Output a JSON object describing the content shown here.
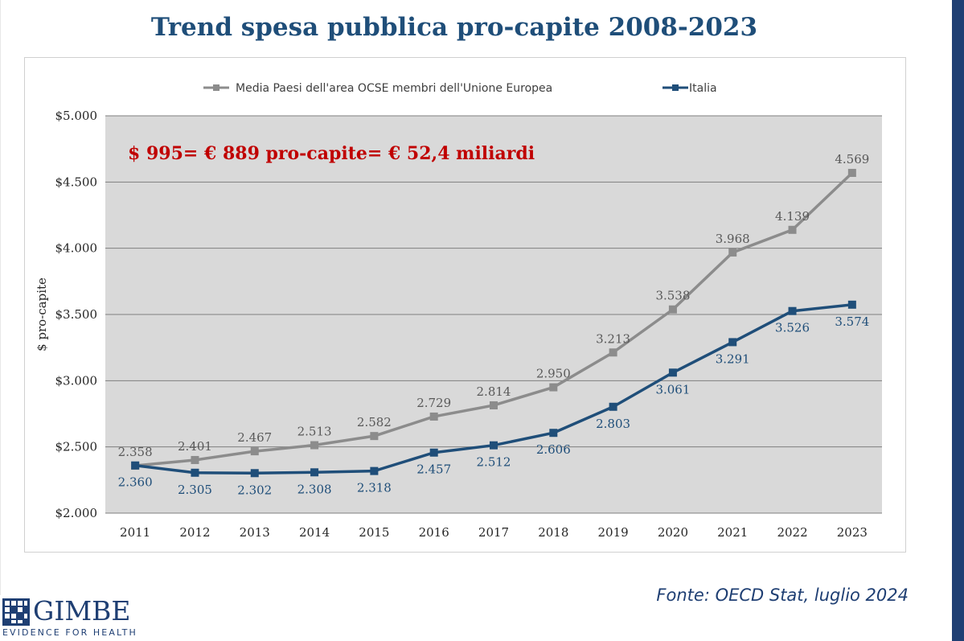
{
  "title": "Trend spesa pubblica pro-capite 2008-2023",
  "annotation": "$ 995= € 889 pro-capite= € 52,4 miliardi",
  "source": "Fonte: OECD Stat, luglio 2024",
  "logo": {
    "word": "GIMBE",
    "tagline": "EVIDENCE FOR HEALTH"
  },
  "colors": {
    "title": "#1f4e79",
    "gray_series": "#8c8c8c",
    "blue_series": "#1f4e79",
    "annotation": "#c00000",
    "plot_bg": "#d9d9d9"
  },
  "chart_data": {
    "type": "line",
    "title": "Trend spesa pubblica pro-capite 2008-2023",
    "ylabel": "$ pro-capite",
    "xlabel": "",
    "ylim": [
      2000,
      5000
    ],
    "yticks": [
      2000,
      2500,
      3000,
      3500,
      4000,
      4500,
      5000
    ],
    "ytick_labels": [
      "$2.000",
      "$2.500",
      "$3.000",
      "$3.500",
      "$4.000",
      "$4.500",
      "$5.000"
    ],
    "legend_position": "top",
    "categories": [
      "2011",
      "2012",
      "2013",
      "2014",
      "2015",
      "2016",
      "2017",
      "2018",
      "2019",
      "2020",
      "2021",
      "2022",
      "2023"
    ],
    "series": [
      {
        "name": "Media Paesi dell'area OCSE membri dell'Unione Europea",
        "color": "#8c8c8c",
        "values": [
          2358,
          2401,
          2467,
          2513,
          2582,
          2729,
          2814,
          2950,
          3213,
          3538,
          3968,
          4139,
          4569
        ],
        "labels": [
          "2.358",
          "2.401",
          "2.467",
          "2.513",
          "2.582",
          "2.729",
          "2.814",
          "2.950",
          "3.213",
          "3.538",
          "3.968",
          "4.139",
          "4.569"
        ],
        "label_position": "above"
      },
      {
        "name": "Italia",
        "color": "#1f4e79",
        "values": [
          2360,
          2305,
          2302,
          2308,
          2318,
          2457,
          2512,
          2606,
          2803,
          3061,
          3291,
          3526,
          3574
        ],
        "labels": [
          "2.360",
          "2.305",
          "2.302",
          "2.308",
          "2.318",
          "2.457",
          "2.512",
          "2.606",
          "2.803",
          "3.061",
          "3.291",
          "3.526",
          "3.574"
        ],
        "label_position": "below"
      }
    ]
  }
}
